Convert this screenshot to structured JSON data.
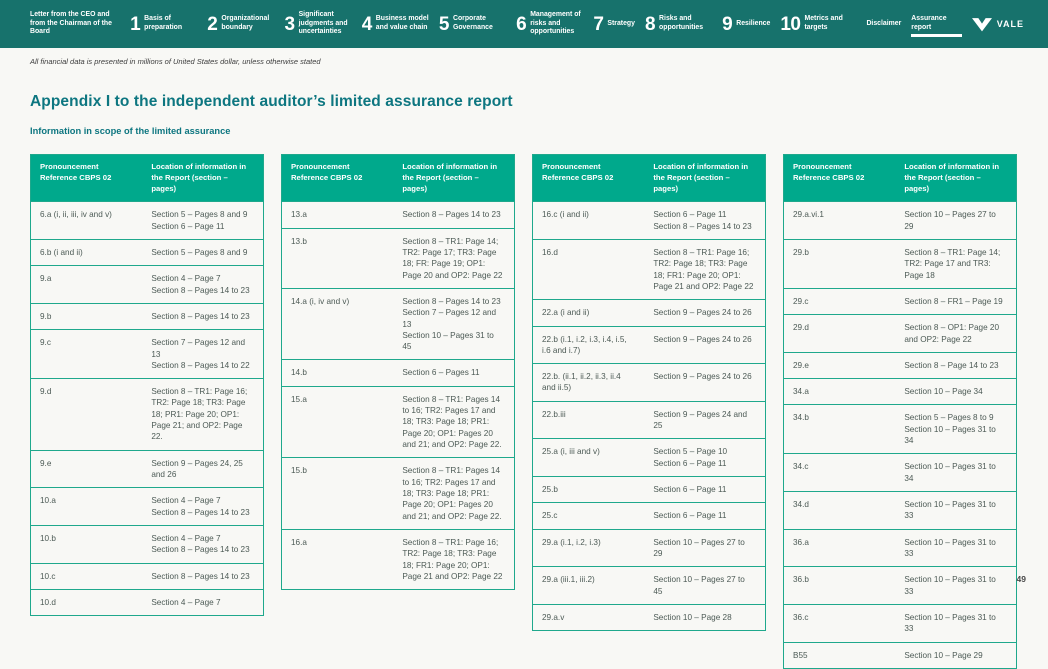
{
  "colors": {
    "nav_bg": "#17726c",
    "table_header_bg": "#00a98c",
    "table_border": "#1fa88c",
    "title_text": "#0d7680",
    "cell_text": "#4c5a55"
  },
  "nav": {
    "items": [
      {
        "number": "",
        "label": "Letter from the CEO and from the Chairman of the Board",
        "active": false
      },
      {
        "number": "1",
        "label": "Basis of preparation",
        "active": false
      },
      {
        "number": "2",
        "label": "Organizational boundary",
        "active": false
      },
      {
        "number": "3",
        "label": "Significant judgments and uncertainties",
        "active": false
      },
      {
        "number": "4",
        "label": "Business model and value chain",
        "active": false
      },
      {
        "number": "5",
        "label": "Corporate Governance",
        "active": false
      },
      {
        "number": "6",
        "label": "Management of risks and opportunities",
        "active": false
      },
      {
        "number": "7",
        "label": "Strategy",
        "active": false
      },
      {
        "number": "8",
        "label": "Risks and opportunities",
        "active": false
      },
      {
        "number": "9",
        "label": "Resilience",
        "active": false
      },
      {
        "number": "10",
        "label": "Metrics and targets",
        "active": false
      },
      {
        "number": "",
        "label": "Disclaimer",
        "active": false
      },
      {
        "number": "",
        "label": "Assurance report",
        "active": true
      }
    ],
    "logo_text": "VALE"
  },
  "note": "All financial data is presented in millions of United States dollar, unless otherwise stated",
  "page": {
    "title": "Appendix I to the independent auditor’s limited assurance report",
    "subtitle": "Information in scope of the limited assurance",
    "page_number": "49"
  },
  "table_headers": {
    "col1": "Pronouncement Reference CBPS 02",
    "col2": "Location of information in the Report  (section – pages)"
  },
  "tables": [
    {
      "rows": [
        {
          "ref": "6.a (i, ii, iii, iv and v)",
          "location": "Section 5 – Pages 8 and 9\nSection 6 – Page 11"
        },
        {
          "ref": "6.b (i and ii)",
          "location": "Section 5 – Pages 8 and 9"
        },
        {
          "ref": "9.a",
          "location": "Section 4 – Page 7\nSection 8 – Pages 14 to 23"
        },
        {
          "ref": "9.b",
          "location": "Section 8 – Pages 14 to 23"
        },
        {
          "ref": "9.c",
          "location": "Section 7 – Pages 12 and 13\nSection 8 – Pages 14 to 22"
        },
        {
          "ref": "9.d",
          "location": "Section 8 – TR1: Page 16; TR2: Page 18; TR3: Page 18; PR1: Page 20; OP1: Page 21; and OP2: Page 22."
        },
        {
          "ref": "9.e",
          "location": "Section 9 – Pages 24, 25 and 26"
        },
        {
          "ref": "10.a",
          "location": "Section 4 – Page 7\nSection 8 – Pages 14 to 23"
        },
        {
          "ref": "10.b",
          "location": "Section 4 – Page 7\nSection 8 – Pages 14 to 23"
        },
        {
          "ref": "10.c",
          "location": "Section 8 – Pages 14 to 23"
        },
        {
          "ref": "10.d",
          "location": "Section 4 – Page 7"
        }
      ]
    },
    {
      "rows": [
        {
          "ref": "13.a",
          "location": "Section 8 – Pages 14 to 23"
        },
        {
          "ref": "13.b",
          "location": "Section 8 – TR1: Page 14; TR2: Page 17; TR3: Page 18; FR: Page 19; OP1: Page 20 and OP2: Page 22"
        },
        {
          "ref": "14.a (i, iv and v)",
          "location": "Section 8 – Pages 14 to 23\nSection 7 – Pages 12 and 13\nSection 10 – Pages 31 to 45"
        },
        {
          "ref": "14.b",
          "location": "Section 6 – Pages 11"
        },
        {
          "ref": "15.a",
          "location": "Section 8 – TR1: Pages 14 to 16; TR2: Pages 17 and 18; TR3: Page 18; PR1: Page 20; OP1: Pages 20 and 21; and OP2: Page 22."
        },
        {
          "ref": "15.b",
          "location": "Section 8 – TR1: Pages 14 to 16; TR2: Pages 17 and 18; TR3: Page 18; PR1: Page 20; OP1: Pages 20 and 21; and OP2: Page 22."
        },
        {
          "ref": "16.a",
          "location": "Section 8 – TR1: Page 16; TR2: Page 18; TR3: Page 18; FR1: Page 20; OP1: Page 21 and OP2: Page 22"
        }
      ]
    },
    {
      "rows": [
        {
          "ref": "16.c (i and ii)",
          "location": "Section 6 – Page 11\nSection 8 – Pages 14 to 23"
        },
        {
          "ref": "16.d",
          "location": "Section 8 – TR1: Page 16; TR2: Page 18; TR3: Page 18; FR1: Page 20; OP1: Page 21 and OP2: Page 22"
        },
        {
          "ref": "22.a (i and ii)",
          "location": "Section 9 – Pages 24 to 26"
        },
        {
          "ref": "22.b (i.1, i.2, i.3, i.4, i.5, i.6 and i.7)",
          "location": "Section 9 – Pages 24 to 26"
        },
        {
          "ref": "22.b. (ii.1, ii.2, ii.3, ii.4 and ii.5)",
          "location": "Section 9 – Pages 24 to 26"
        },
        {
          "ref": "22.b.iii",
          "location": "Section 9 – Pages 24 and 25"
        },
        {
          "ref": "25.a (i, iii and v)",
          "location": "Section 5 – Page 10\nSection 6 – Page 11"
        },
        {
          "ref": "25.b",
          "location": "Section 6 – Page 11"
        },
        {
          "ref": "25.c",
          "location": "Section 6 – Page 11"
        },
        {
          "ref": "29.a (i.1, i.2, i.3)",
          "location": "Section 10 – Pages 27 to 29"
        },
        {
          "ref": "29.a (iii.1, iii.2)",
          "location": "Section 10 – Pages 27 to 45"
        },
        {
          "ref": "29.a.v",
          "location": "Section 10 – Page 28"
        }
      ]
    },
    {
      "rows": [
        {
          "ref": "29.a.vi.1",
          "location": "Section 10 – Pages 27 to 29"
        },
        {
          "ref": "29.b",
          "location": "Section 8 – TR1: Page 14; TR2: Page 17 and TR3:  Page 18"
        },
        {
          "ref": "29.c",
          "location": "Section 8 – FR1 – Page 19"
        },
        {
          "ref": "29.d",
          "location": "Section 8 – OP1: Page 20 and OP2: Page 22"
        },
        {
          "ref": "29.e",
          "location": "Section 8 – Page 14 to 23"
        },
        {
          "ref": "34.a",
          "location": "Section 10 – Page 34"
        },
        {
          "ref": "34.b",
          "location": "Section 5 – Pages 8 to 9\nSection 10 – Pages 31 to 34"
        },
        {
          "ref": "34.c",
          "location": "Section 10 – Pages 31 to 34"
        },
        {
          "ref": "34.d",
          "location": "Section 10 – Pages 31 to 33"
        },
        {
          "ref": "36.a",
          "location": "Section 10 – Pages 31 to 33"
        },
        {
          "ref": "36.b",
          "location": "Section 10 – Pages 31 to 33"
        },
        {
          "ref": "36.c",
          "location": "Section 10 – Pages 31 to 33"
        },
        {
          "ref": "B55",
          "location": "Section 10 – Page 29"
        }
      ]
    }
  ]
}
